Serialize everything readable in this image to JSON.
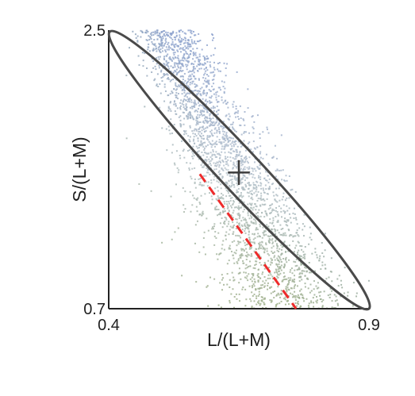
{
  "chart_data": {
    "type": "scatter",
    "title": "",
    "xlabel": "L/(L+M)",
    "ylabel": "S/(L+M)",
    "xlim": [
      0.4,
      0.9
    ],
    "ylim": [
      0.7,
      2.5
    ],
    "xtick_labels": [
      "0.4",
      "0.9"
    ],
    "ytick_labels": [
      "2.5",
      "0.7"
    ],
    "grid": false,
    "legend": "none",
    "point_cloud": {
      "description_free": true,
      "count": 2800,
      "color_top": "#8FA4CF",
      "color_bottom": "#9FB08A",
      "color_mid": "#B7C3CE"
    },
    "ellipse": {
      "center": [
        0.66,
        1.57
      ],
      "major_axis_endpoints": [
        [
          0.402,
          2.49
        ],
        [
          0.9,
          0.7
        ]
      ],
      "minor_half_width": 0.055,
      "color": "#4a4a4a"
    },
    "cross_marker": {
      "center": [
        0.65,
        1.58
      ],
      "size_x": 0.042,
      "size_y": 0.16,
      "color": "#3b3b3b"
    },
    "dashed_line": {
      "points": [
        [
          0.575,
          1.57
        ],
        [
          0.76,
          0.7
        ]
      ],
      "color": "#ee2b2b"
    }
  }
}
